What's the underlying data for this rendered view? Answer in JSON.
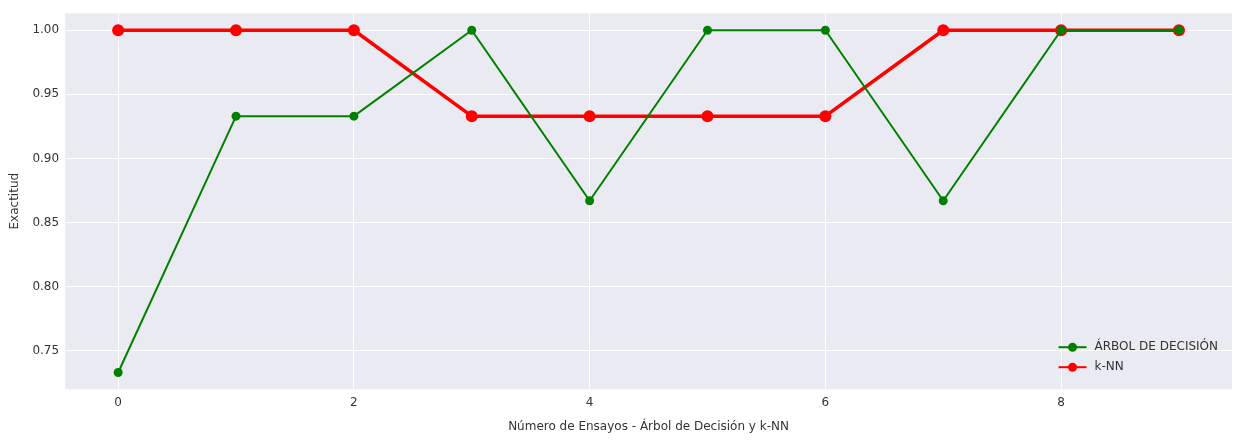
{
  "chart_data": {
    "type": "line",
    "xlabel": "Número de Ensayos - Árbol de Decisión y k-NN",
    "ylabel": "Exactitud",
    "x": [
      0,
      1,
      2,
      3,
      4,
      5,
      6,
      7,
      8,
      9
    ],
    "series": [
      {
        "name": "ÁRBOL DE DECISIÓN",
        "color": "#008000",
        "values": [
          0.733,
          0.933,
          0.933,
          1.0,
          0.867,
          1.0,
          1.0,
          0.867,
          1.0,
          1.0
        ]
      },
      {
        "name": "k-NN",
        "color": "#ff0000",
        "values": [
          1.0,
          1.0,
          1.0,
          0.933,
          0.933,
          0.933,
          0.933,
          1.0,
          1.0,
          1.0
        ]
      }
    ],
    "xlim": [
      -0.45,
      9.45
    ],
    "xticks": [
      0,
      2,
      4,
      6,
      8
    ],
    "ylim": [
      0.72,
      1.0133
    ],
    "yticks": [
      0.75,
      {
        "value": 0.8,
        "label": "0.80"
      },
      0.85,
      {
        "value": 0.9,
        "label": "0.90"
      },
      0.95,
      {
        "value": 1.0,
        "label": "1.00"
      }
    ],
    "grid": true,
    "legend": "bottom right",
    "marker": "circle",
    "line_style": "solid"
  }
}
